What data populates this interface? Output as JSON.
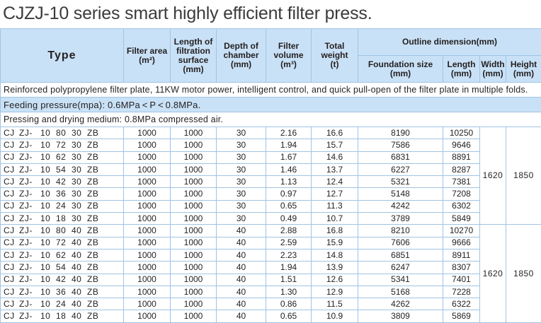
{
  "title": "CJZJ-10 series smart highly efficient filter press.",
  "header": {
    "type": "Type",
    "filter_area": "Filter area",
    "filter_area_unit": "(m²)",
    "length_plate": "Length of filtration surface",
    "length_plate_unit": "(mm)",
    "depth": "Depth of chamber",
    "depth_unit": "(mm)",
    "volume": "Filter volume",
    "volume_unit": "(m³)",
    "weight": "Total weight",
    "weight_unit": "(t)",
    "outline": "Outline dimension(mm)",
    "foundation": "Foundation size",
    "foundation_unit": "(mm)",
    "length": "Length",
    "length_unit": "(mm)",
    "width": "Width",
    "width_unit": "(mm)",
    "height": "Height",
    "height_unit": "(mm)"
  },
  "notes": {
    "plate": "Reinforced polypropylene filter plate, 11KW motor power, intelligent control, and quick pull-open of the filter plate in multiple folds.",
    "pressure": "Feeding pressure(mpa): 0.6MPa < P < 0.8MPa.",
    "medium": "Pressing and drying medium: 0.8MPa compressed air."
  },
  "groups": [
    {
      "width": "1620",
      "height": "1850",
      "rows": [
        {
          "code": [
            "CJ",
            "ZJ-",
            "10",
            "80",
            "30",
            "ZB"
          ],
          "area": "1000",
          "len": "1000",
          "depth": "30",
          "vol": "2.16",
          "weight": "16.6",
          "found": "8190",
          "length": "10250"
        },
        {
          "code": [
            "CJ",
            "ZJ-",
            "10",
            "72",
            "30",
            "ZB"
          ],
          "area": "1000",
          "len": "1000",
          "depth": "30",
          "vol": "1.94",
          "weight": "15.7",
          "found": "7586",
          "length": "9646"
        },
        {
          "code": [
            "CJ",
            "ZJ-",
            "10",
            "62",
            "30",
            "ZB"
          ],
          "area": "1000",
          "len": "1000",
          "depth": "30",
          "vol": "1.67",
          "weight": "14.6",
          "found": "6831",
          "length": "8891"
        },
        {
          "code": [
            "CJ",
            "ZJ-",
            "10",
            "54",
            "30",
            "ZB"
          ],
          "area": "1000",
          "len": "1000",
          "depth": "30",
          "vol": "1.46",
          "weight": "13.7",
          "found": "6227",
          "length": "8287"
        },
        {
          "code": [
            "CJ",
            "ZJ-",
            "10",
            "42",
            "30",
            "ZB"
          ],
          "area": "1000",
          "len": "1000",
          "depth": "30",
          "vol": "1.13",
          "weight": "12.4",
          "found": "5321",
          "length": "7381"
        },
        {
          "code": [
            "CJ",
            "ZJ-",
            "10",
            "36",
            "30",
            "ZB"
          ],
          "area": "1000",
          "len": "1000",
          "depth": "30",
          "vol": "0.97",
          "weight": "12.7",
          "found": "5148",
          "length": "7208"
        },
        {
          "code": [
            "CJ",
            "ZJ-",
            "10",
            "24",
            "30",
            "ZB"
          ],
          "area": "1000",
          "len": "1000",
          "depth": "30",
          "vol": "0.65",
          "weight": "11.3",
          "found": "4242",
          "length": "6302"
        },
        {
          "code": [
            "CJ",
            "ZJ-",
            "10",
            "18",
            "30",
            "ZB"
          ],
          "area": "1000",
          "len": "1000",
          "depth": "30",
          "vol": "0.49",
          "weight": "10.7",
          "found": "3789",
          "length": "5849"
        }
      ]
    },
    {
      "width": "1620",
      "height": "1850",
      "rows": [
        {
          "code": [
            "CJ",
            "ZJ-",
            "10",
            "80",
            "40",
            "ZB"
          ],
          "area": "1000",
          "len": "1000",
          "depth": "40",
          "vol": "2.88",
          "weight": "16.8",
          "found": "8210",
          "length": "10270"
        },
        {
          "code": [
            "CJ",
            "ZJ-",
            "10",
            "72",
            "40",
            "ZB"
          ],
          "area": "1000",
          "len": "1000",
          "depth": "40",
          "vol": "2.59",
          "weight": "15.9",
          "found": "7606",
          "length": "9666"
        },
        {
          "code": [
            "CJ",
            "ZJ-",
            "10",
            "62",
            "40",
            "ZB"
          ],
          "area": "1000",
          "len": "1000",
          "depth": "40",
          "vol": "2.23",
          "weight": "14.8",
          "found": "6851",
          "length": "8911"
        },
        {
          "code": [
            "CJ",
            "ZJ-",
            "10",
            "54",
            "40",
            "ZB"
          ],
          "area": "1000",
          "len": "1000",
          "depth": "40",
          "vol": "1.94",
          "weight": "13.9",
          "found": "6247",
          "length": "8307"
        },
        {
          "code": [
            "CJ",
            "ZJ-",
            "10",
            "42",
            "40",
            "ZB"
          ],
          "area": "1000",
          "len": "1000",
          "depth": "40",
          "vol": "1.51",
          "weight": "12.6",
          "found": "5341",
          "length": "7401"
        },
        {
          "code": [
            "CJ",
            "ZJ-",
            "10",
            "36",
            "40",
            "ZB"
          ],
          "area": "1000",
          "len": "1000",
          "depth": "40",
          "vol": "1.30",
          "weight": "12.9",
          "found": "5168",
          "length": "7228"
        },
        {
          "code": [
            "CJ",
            "ZJ-",
            "10",
            "24",
            "40",
            "ZB"
          ],
          "area": "1000",
          "len": "1000",
          "depth": "40",
          "vol": "0.86",
          "weight": "11.5",
          "found": "4262",
          "length": "6322"
        },
        {
          "code": [
            "CJ",
            "ZJ-",
            "10",
            "18",
            "40",
            "ZB"
          ],
          "area": "1000",
          "len": "1000",
          "depth": "40",
          "vol": "0.65",
          "weight": "10.9",
          "found": "3809",
          "length": "5869"
        }
      ]
    }
  ]
}
